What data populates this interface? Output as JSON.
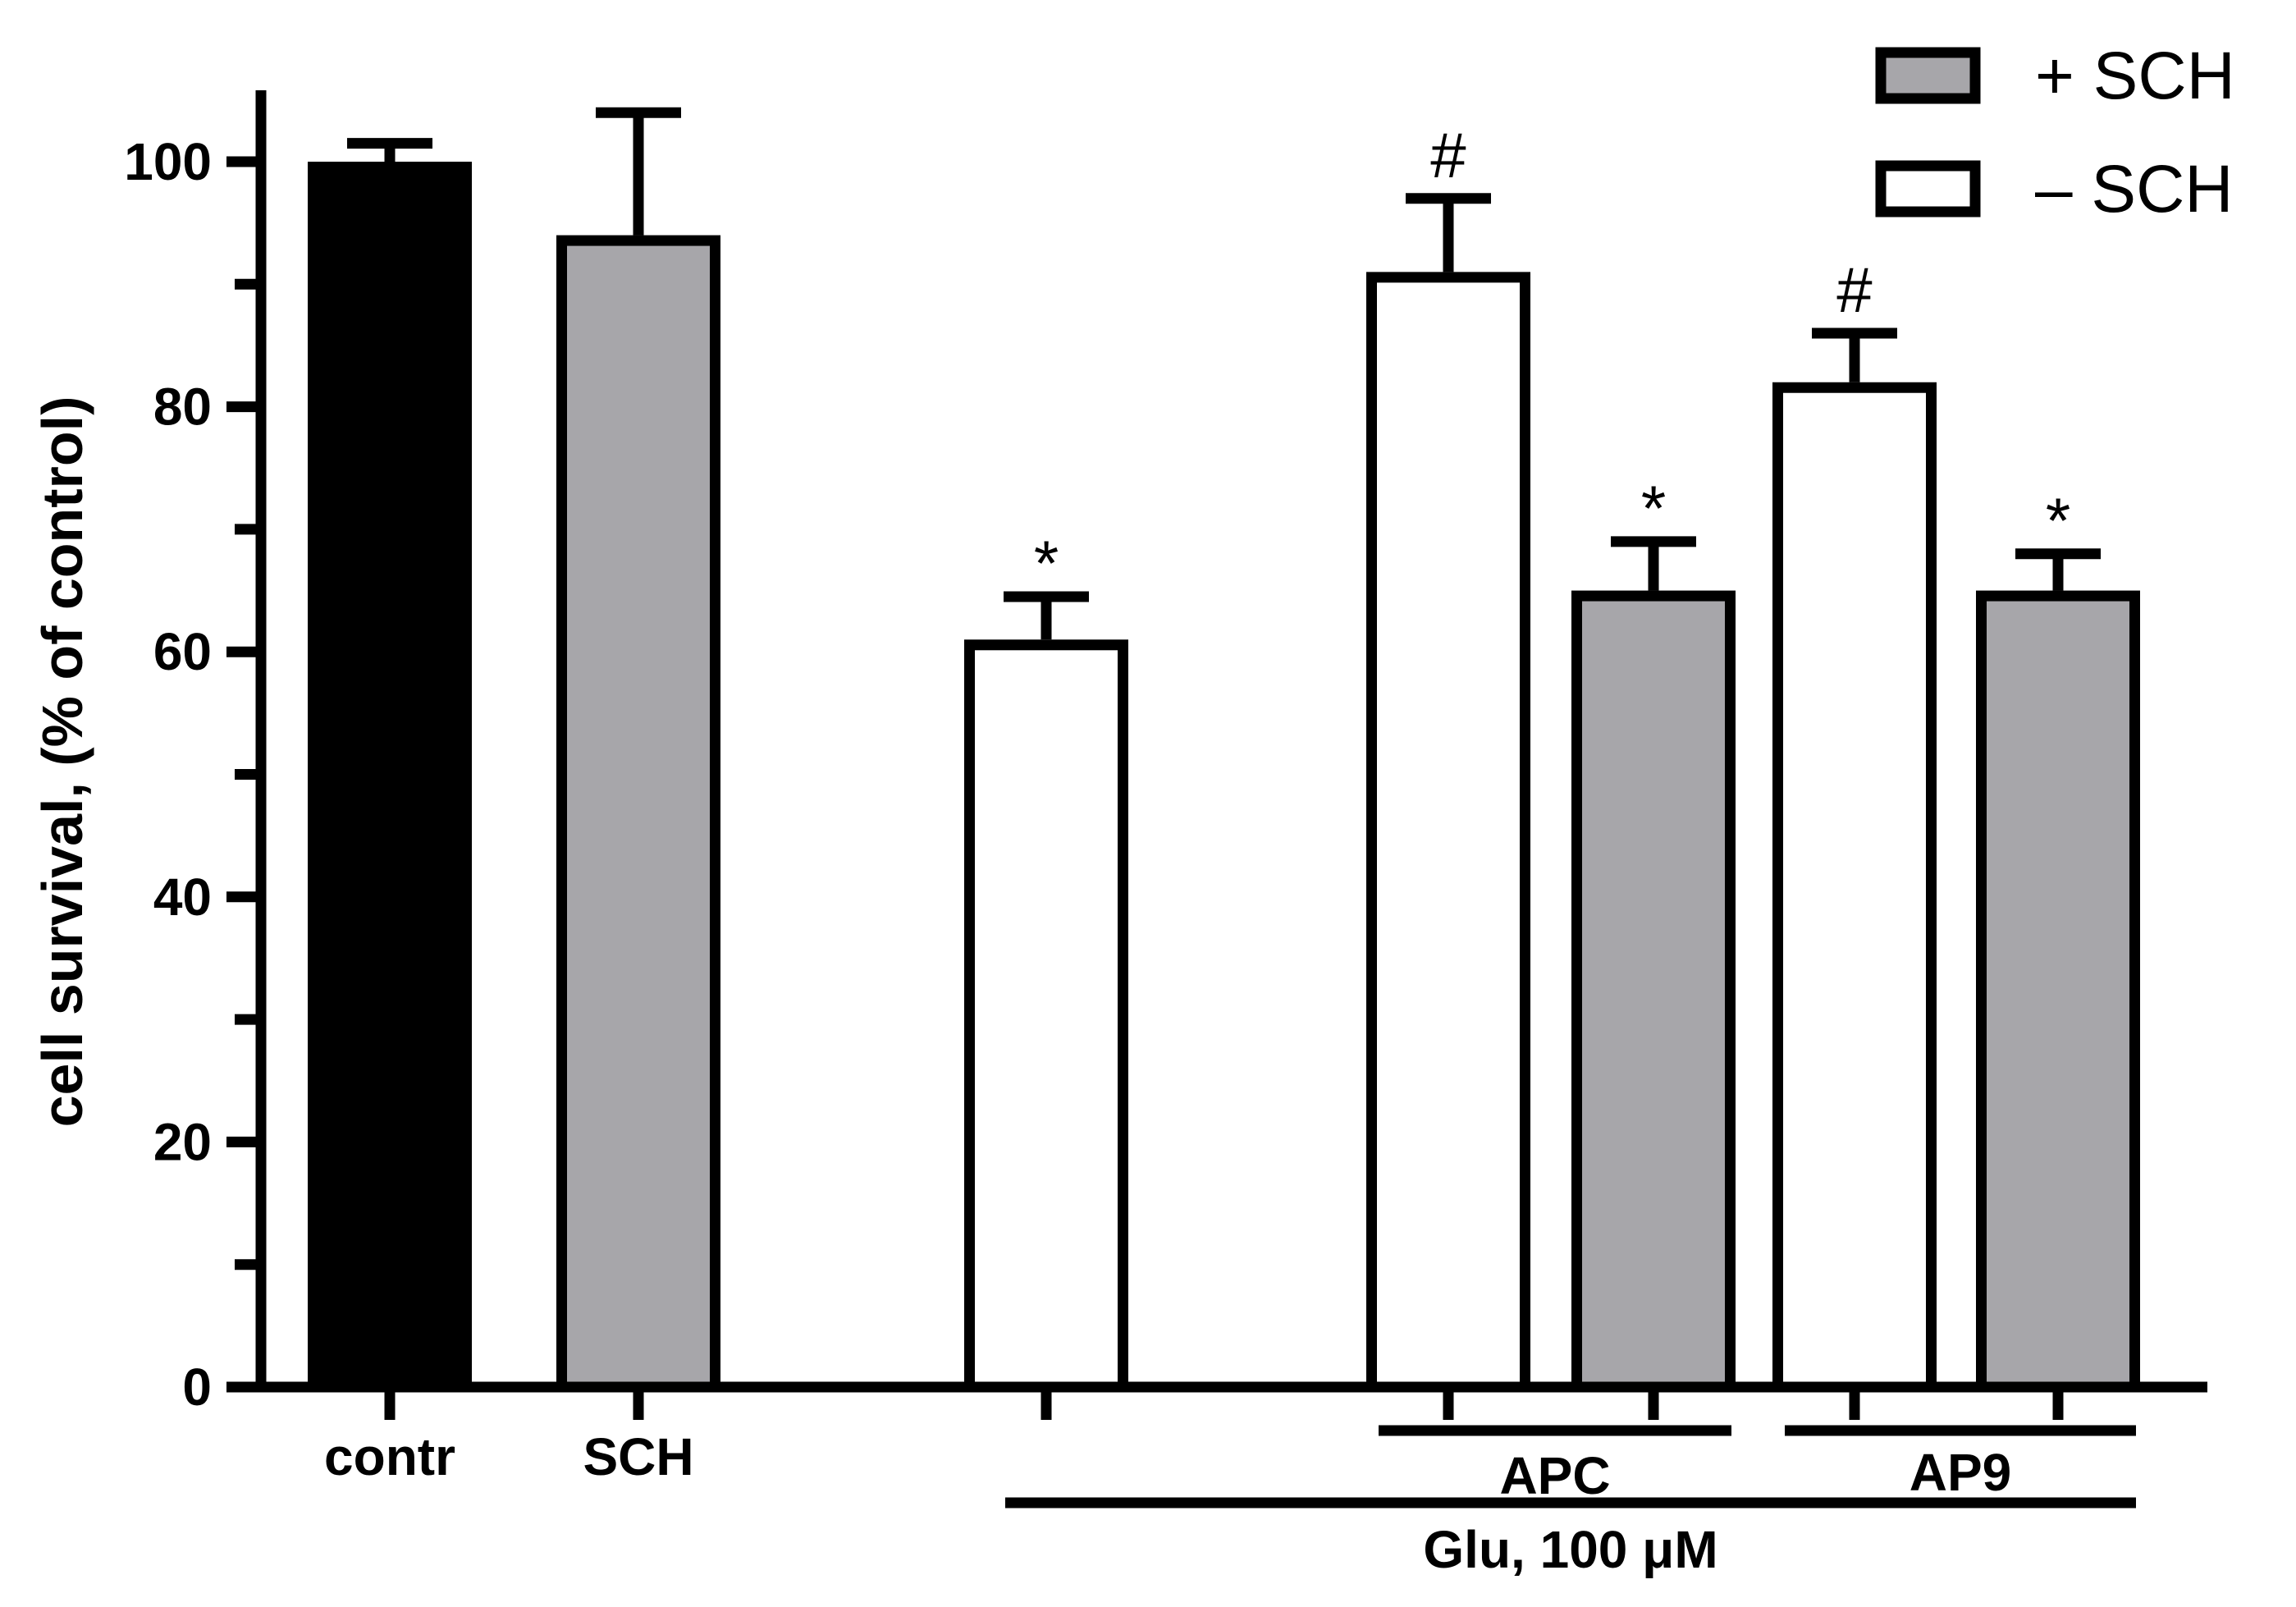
{
  "chart_data": {
    "type": "bar",
    "title": "",
    "xlabel": "",
    "ylabel": "cell survival, (% of control)",
    "ylim": [
      0,
      100
    ],
    "y_major_ticks": [
      0,
      20,
      40,
      60,
      80,
      100
    ],
    "y_minor_ticks": [
      10,
      30,
      50,
      70,
      90
    ],
    "grid": false,
    "legend_position": "top-right",
    "legend": [
      {
        "label": "+ SCH",
        "fill": "#a7a6aa"
      },
      {
        "label": "– SCH",
        "fill": "#ffffff"
      }
    ],
    "bars": [
      {
        "id": "contr",
        "category": "contr",
        "value": 100,
        "error": 1.5,
        "fill": "#000000",
        "annotation": ""
      },
      {
        "id": "sch",
        "category": "SCH",
        "value": 94,
        "error": 10,
        "fill": "#a7a6aa",
        "annotation": ""
      },
      {
        "id": "glu",
        "category": "",
        "value": 61,
        "error": 3.5,
        "fill": "#ffffff",
        "annotation": "*"
      },
      {
        "id": "apc-minus",
        "category": "",
        "value": 91,
        "error": 6,
        "fill": "#ffffff",
        "annotation": "#"
      },
      {
        "id": "apc-plus",
        "category": "",
        "value": 65,
        "error": 4,
        "fill": "#a7a6aa",
        "annotation": "*"
      },
      {
        "id": "ap9-minus",
        "category": "",
        "value": 82,
        "error": 4,
        "fill": "#ffffff",
        "annotation": "#"
      },
      {
        "id": "ap9-plus",
        "category": "",
        "value": 65,
        "error": 3,
        "fill": "#a7a6aa",
        "annotation": "*"
      }
    ],
    "group_labels": [
      {
        "id": "apc",
        "label": "APC",
        "bars": [
          "apc-minus",
          "apc-plus"
        ]
      },
      {
        "id": "ap9",
        "label": "AP9",
        "bars": [
          "ap9-minus",
          "ap9-plus"
        ]
      },
      {
        "id": "glu",
        "label": "Glu, 100 μM",
        "bars": [
          "glu",
          "apc-minus",
          "apc-plus",
          "ap9-minus",
          "ap9-plus"
        ]
      }
    ]
  }
}
